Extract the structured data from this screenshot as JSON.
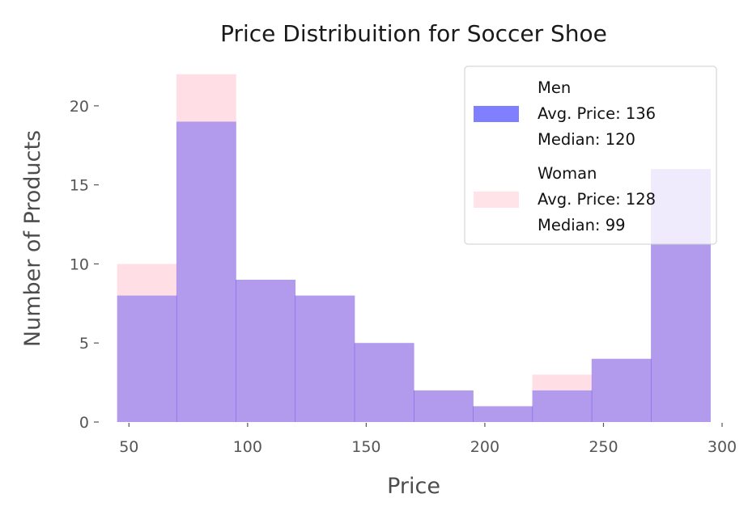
{
  "chart_data": {
    "type": "histogram",
    "title": "Price Distribuition for Soccer Shoe",
    "xlabel": "Price",
    "ylabel": "Number of Products",
    "xlim": [
      40,
      300
    ],
    "ylim": [
      0,
      22.5
    ],
    "xticks": [
      50,
      100,
      150,
      200,
      250,
      300
    ],
    "yticks": [
      0,
      5,
      10,
      15,
      20
    ],
    "bin_edges": [
      45,
      70,
      95,
      120,
      145,
      170,
      195,
      220,
      245,
      270,
      295
    ],
    "grid": false,
    "legend_position": "top-right",
    "series": [
      {
        "name": "Woman",
        "legend_lines": [
          "Woman",
          "Avg. Price: 128",
          "Median: 99"
        ],
        "color": "#ffc0cb",
        "values": [
          10,
          22,
          9,
          8,
          5,
          2,
          1,
          3,
          4,
          16
        ]
      },
      {
        "name": "Men",
        "legend_lines": [
          "Men",
          "Avg. Price: 136",
          "Median: 120"
        ],
        "color": "#0000ff",
        "values": [
          8,
          19,
          9,
          8,
          5,
          2,
          1,
          2,
          4,
          16
        ]
      }
    ],
    "legend_order": [
      "Men",
      "Woman"
    ]
  }
}
